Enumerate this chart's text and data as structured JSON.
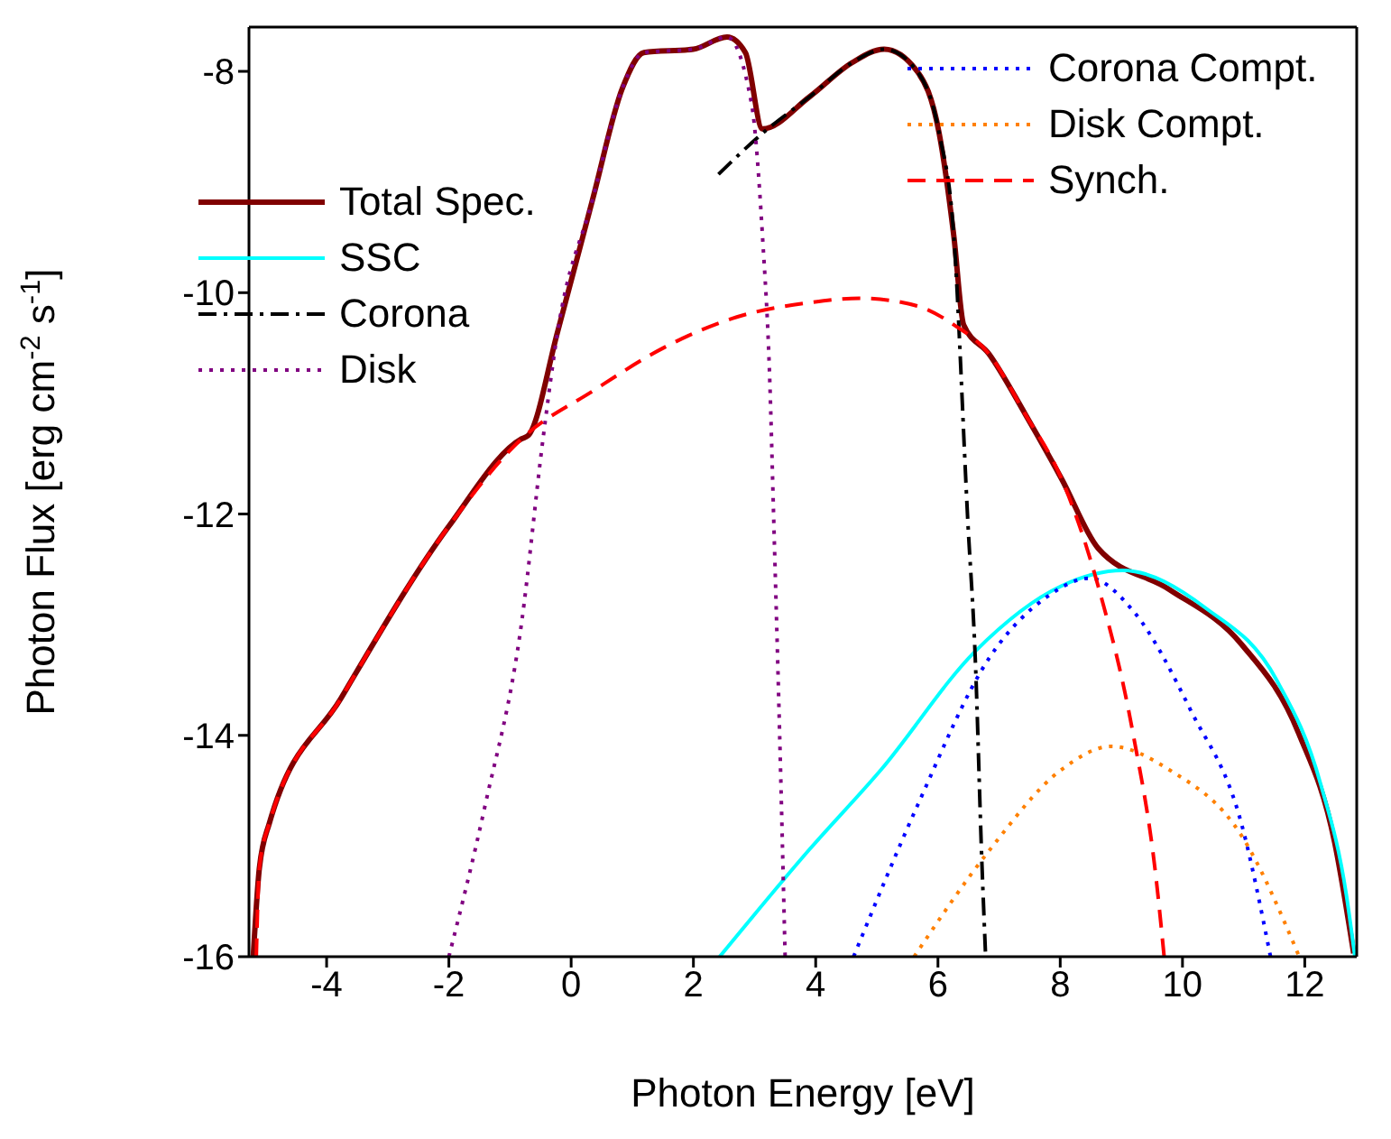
{
  "chart_data": {
    "type": "line",
    "xlabel": "Photon Energy [eV]",
    "ylabel": "Photon Flux [erg cm$^{-2}$ s$^{-1}$]",
    "xlim": [
      -5.27,
      12.85
    ],
    "xticks": [
      -4,
      -2,
      0,
      2,
      4,
      6,
      8,
      10,
      12
    ],
    "ylim": [
      -16,
      -7.6
    ],
    "yticks": [
      -16,
      -14,
      -12,
      -10,
      -8
    ],
    "grid": false,
    "legend": "top",
    "marker": "none",
    "series": [
      {
        "name": "Total Spec.",
        "color": "#800000",
        "line_style": "solid",
        "x": [
          -5.2,
          -5.1,
          -4.94,
          -3.77,
          -2.0,
          -0.81,
          -0.7,
          -0.22,
          0.35,
          0.84,
          1.19,
          2.0,
          2.55,
          2.85,
          3.13,
          3.9,
          4.6,
          5.12,
          5.66,
          6.02,
          6.26,
          6.42,
          6.83,
          7.42,
          8.02,
          8.62,
          9.78,
          10.97,
          11.9,
          12.49,
          12.8
        ],
        "values": [
          -16,
          -15.2,
          -14.8,
          -13.67,
          -12.11,
          -11.32,
          -11.29,
          -10.35,
          -9.16,
          -8.15,
          -7.83,
          -7.8,
          -7.69,
          -7.83,
          -8.52,
          -8.23,
          -7.92,
          -7.8,
          -8.0,
          -8.56,
          -9.49,
          -10.29,
          -10.55,
          -11.09,
          -11.68,
          -12.31,
          -12.68,
          -13.18,
          -13.98,
          -14.97,
          -15.97
        ]
      },
      {
        "name": "SSC",
        "color": "#00ffff",
        "line_style": "solid",
        "x": [
          2.43,
          3.9,
          5.07,
          6.61,
          8.02,
          9.02,
          10.38,
          11.54,
          12.26,
          12.68,
          12.82
        ],
        "values": [
          -16,
          -15.03,
          -14.31,
          -13.24,
          -12.65,
          -12.51,
          -12.85,
          -13.5,
          -14.44,
          -15.44,
          -16
        ]
      },
      {
        "name": "Corona",
        "color": "#000000",
        "line_style": "dashdot",
        "x": [
          2.41,
          3.13,
          3.9,
          4.6,
          5.12,
          5.66,
          6.02,
          6.26,
          6.49,
          6.61,
          6.72,
          6.78
        ],
        "values": [
          -8.93,
          -8.56,
          -8.23,
          -7.92,
          -7.8,
          -8.0,
          -8.56,
          -9.49,
          -12.08,
          -13.3,
          -15.17,
          -16
        ]
      },
      {
        "name": "Disk",
        "color": "#800080",
        "line_style": "dotted",
        "x": [
          -2.0,
          -1.41,
          -0.81,
          -0.46,
          -0.22,
          0.35,
          0.84,
          1.19,
          2.0,
          2.55,
          2.95,
          3.13,
          3.25,
          3.31,
          3.41,
          3.5
        ],
        "values": [
          -16,
          -14.64,
          -12.98,
          -11.32,
          -10.35,
          -9.16,
          -8.15,
          -7.83,
          -7.8,
          -7.69,
          -8.29,
          -9.49,
          -10.81,
          -11.98,
          -13.98,
          -16
        ]
      },
      {
        "name": "Corona Compt.",
        "color": "#0000ff",
        "line_style": "dotted",
        "x": [
          4.62,
          5.66,
          6.84,
          7.78,
          8.48,
          9.2,
          10.14,
          10.98,
          11.44
        ],
        "values": [
          -16,
          -14.64,
          -13.3,
          -12.75,
          -12.58,
          -12.88,
          -13.78,
          -14.83,
          -16
        ]
      },
      {
        "name": "Disk Compt.",
        "color": "#ff8000",
        "line_style": "dotted",
        "x": [
          5.61,
          6.84,
          8.02,
          8.83,
          9.78,
          10.97,
          11.91
        ],
        "values": [
          -16,
          -15.04,
          -14.31,
          -14.1,
          -14.31,
          -14.91,
          -16
        ]
      },
      {
        "name": "Synch.",
        "color": "#ff0000",
        "line_style": "dashed",
        "x": [
          -5.15,
          -5.1,
          -4.94,
          -3.77,
          -2.0,
          -0.81,
          0.35,
          1.54,
          2.71,
          3.9,
          4.72,
          5.66,
          6.26,
          6.83,
          7.42,
          8.02,
          8.62,
          9.19,
          9.57,
          9.7
        ],
        "values": [
          -16,
          -15.2,
          -14.8,
          -13.67,
          -12.11,
          -11.32,
          -10.89,
          -10.49,
          -10.22,
          -10.09,
          -10.05,
          -10.12,
          -10.29,
          -10.55,
          -11.09,
          -11.68,
          -12.65,
          -13.98,
          -15.3,
          -16
        ]
      }
    ]
  }
}
